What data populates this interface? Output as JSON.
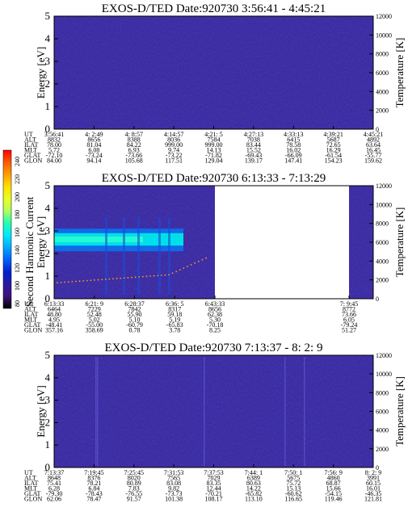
{
  "colorbar": {
    "title": "Second Harmonic Current",
    "ticks": [
      "240",
      "220",
      "200",
      "180",
      "160",
      "140",
      "120",
      "100",
      "80"
    ],
    "stops": [
      "#ff0000",
      "#ff5a00",
      "#ffa000",
      "#ffe000",
      "#e8ff20",
      "#b0ff60",
      "#20ffb0",
      "#00e8ff",
      "#00a8ff",
      "#0060ff",
      "#0020d0",
      "#2a1aa0",
      "#40107a",
      "#000000"
    ]
  },
  "chart_data": [
    {
      "type": "heatmap",
      "title": "EXOS-D/TED   Date:920730  3:56:41 - 4:45:21",
      "ylabel": "Energy [eV]",
      "y2label": "Temperature [K]",
      "ylim": [
        0,
        5
      ],
      "y2lim": [
        0,
        12000
      ],
      "yticks": [
        "0",
        "1",
        "2",
        "3",
        "4",
        "5"
      ],
      "y2ticks": [
        "0",
        "2000",
        "4000",
        "6000",
        "8000",
        "10000",
        "12000"
      ],
      "row_labels": [
        "UT",
        "ALT",
        "ILAT",
        "MLT",
        "GLAT",
        "GLON"
      ],
      "columns": [
        [
          "3:56:41",
          "8832",
          "78.00",
          "5.72",
          "-72.10",
          "84.00"
        ],
        [
          "4: 2:49",
          "8656",
          "81.04",
          "6.08",
          "-73.24",
          "94.14"
        ],
        [
          "4: 8:57",
          "8388",
          "84.22",
          "6.93",
          "-73.66",
          "105.68"
        ],
        [
          "4:14:57",
          "8036",
          "999.00",
          "9.74",
          "-73.22",
          "117.51"
        ],
        [
          "4:21: 5",
          "7584",
          "999.00",
          "14.13",
          "-71.82",
          "129.04"
        ],
        [
          "4:27:13",
          "7038",
          "83.44",
          "15.52",
          "-69.43",
          "139.17"
        ],
        [
          "4:33:13",
          "6415",
          "78.58",
          "16.02",
          "-66.09",
          "147.41"
        ],
        [
          "4:39:21",
          "5687",
          "72.65",
          "16.29",
          "-61.54",
          "154.23"
        ],
        [
          "4:45:21",
          "4892",
          "63.64",
          "16.45",
          "-55.77",
          "159.62"
        ]
      ]
    },
    {
      "type": "heatmap",
      "title": "EXOS-D/TED   Date:920730  6:13:33 - 7:13:29",
      "ylabel": "Energy [eV]",
      "y2label": "Temperature [K]",
      "ylim": [
        0,
        5
      ],
      "y2lim": [
        0,
        12000
      ],
      "yticks": [
        "0",
        "1",
        "2",
        "3",
        "4",
        "5"
      ],
      "y2ticks": [
        "0",
        "2000",
        "4000",
        "6000",
        "8000",
        "10000",
        "12000"
      ],
      "row_labels": [
        "UT",
        "ALT",
        "ILAT",
        "MLT",
        "GLAT",
        "GLON"
      ],
      "columns": [
        [
          "6:13:33",
          "6464",
          "48.80",
          "4.95",
          "-48.41",
          "357.16"
        ],
        [
          "6:21: 9",
          "7229",
          "52.48",
          "5.02",
          "-55.00",
          "358.69"
        ],
        [
          "6:28:37",
          "7842",
          "55.90",
          "5.10",
          "-60.79",
          "0.78"
        ],
        [
          "6:36: 5",
          "8317",
          "59.18",
          "5.19",
          "-65.83",
          "3.78"
        ],
        [
          "6:43:33",
          "8656",
          "62.38",
          "5.30",
          "-70.18",
          "8.25"
        ],
        [
          "7: 9:45",
          "8772",
          "73.66",
          "6.05",
          "-79.24",
          "51.27"
        ]
      ]
    },
    {
      "type": "heatmap",
      "title": "EXOS-D/TED   Date:920730  7:13:37 - 8: 2: 9",
      "ylabel": "Energy [eV]",
      "y2label": "Temperature [K]",
      "ylim": [
        0,
        5
      ],
      "y2lim": [
        0,
        12000
      ],
      "yticks": [
        "0",
        "1",
        "2",
        "3",
        "4",
        "5"
      ],
      "y2ticks": [
        "0",
        "2000",
        "4000",
        "6000",
        "8000",
        "10000",
        "12000"
      ],
      "row_labels": [
        "UT",
        "ALT",
        "ILAT",
        "MLT",
        "GLAT",
        "GLON"
      ],
      "columns": [
        [
          "7:13:37",
          "8648",
          "75.41",
          "6.28",
          "-79.30",
          "62.06"
        ],
        [
          "7:19:45",
          "8376",
          "78.21",
          "6.84",
          "-78.43",
          "78.47"
        ],
        [
          "7:25:45",
          "8020",
          "80.89",
          "7.83",
          "-76.55",
          "91.57"
        ],
        [
          "7:31:53",
          "7565",
          "83.08",
          "9.82",
          "-73.73",
          "101.38"
        ],
        [
          "7:37:53",
          "7029",
          "83.35",
          "12.44",
          "-70.21",
          "108.17"
        ],
        [
          "7:44: 1",
          "6389",
          "80.63",
          "14.22",
          "-65.82",
          "113.10"
        ],
        [
          "7:50: 1",
          "5675",
          "75.72",
          "15.13",
          "-60.62",
          "116.65"
        ],
        [
          "7:56: 9",
          "4860",
          "68.87",
          "15.66",
          "-54.15",
          "119.46"
        ],
        [
          "8: 2: 9",
          "3991",
          "60.15",
          "16.01",
          "-46.35",
          "121.81"
        ]
      ]
    }
  ]
}
